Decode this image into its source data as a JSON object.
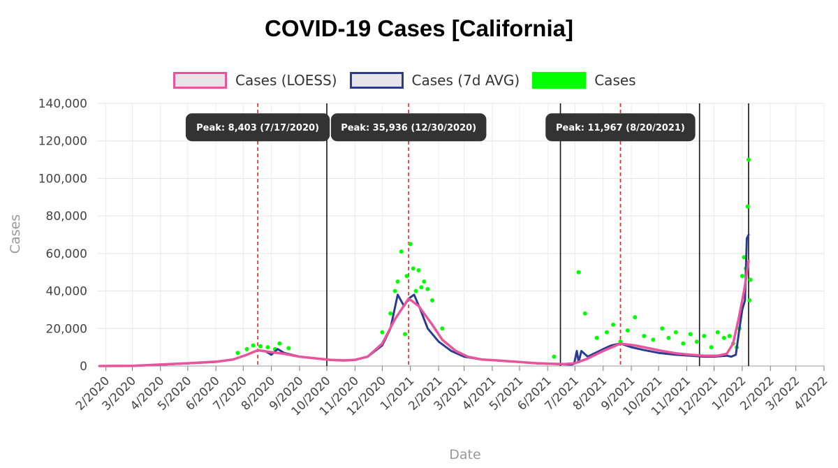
{
  "chart_data": {
    "type": "line",
    "title": "COVID-19 Cases [California]",
    "xlabel": "Date",
    "ylabel": "Cases",
    "ylim": [
      0,
      140000
    ],
    "xlim": [
      "2020-01-23",
      "2022-04-01"
    ],
    "y_ticks": [
      0,
      20000,
      40000,
      60000,
      80000,
      100000,
      120000,
      140000
    ],
    "y_tick_labels": [
      "0",
      "20,000",
      "40,000",
      "60,000",
      "80,000",
      "100,000",
      "120,000",
      "140,000"
    ],
    "x_ticks": [
      "2020-02-01",
      "2020-03-01",
      "2020-04-01",
      "2020-05-01",
      "2020-06-01",
      "2020-07-01",
      "2020-08-01",
      "2020-09-01",
      "2020-10-01",
      "2020-11-01",
      "2020-12-01",
      "2021-01-01",
      "2021-02-01",
      "2021-03-01",
      "2021-04-01",
      "2021-05-01",
      "2021-06-01",
      "2021-07-01",
      "2021-08-01",
      "2021-09-01",
      "2021-10-01",
      "2021-11-01",
      "2021-12-01",
      "2022-01-01",
      "2022-02-01",
      "2022-03-01",
      "2022-04-01"
    ],
    "x_tick_labels": [
      "2/2020",
      "3/2020",
      "4/2020",
      "5/2020",
      "6/2020",
      "7/2020",
      "8/2020",
      "9/2020",
      "10/2020",
      "11/2020",
      "12/2020",
      "1/2021",
      "2/2021",
      "3/2021",
      "4/2021",
      "5/2021",
      "6/2021",
      "7/2021",
      "8/2021",
      "9/2021",
      "10/2021",
      "11/2021",
      "12/2021",
      "1/2022",
      "2/2022",
      "3/2022",
      "4/2022"
    ],
    "grid": true,
    "legend_position": "top",
    "series": [
      {
        "name": "Cases (LOESS)",
        "color": "#e8559c",
        "x": [
          "2020-01-25",
          "2020-03-01",
          "2020-04-01",
          "2020-05-01",
          "2020-06-01",
          "2020-06-20",
          "2020-07-05",
          "2020-07-17",
          "2020-07-30",
          "2020-08-15",
          "2020-09-01",
          "2020-09-20",
          "2020-10-05",
          "2020-10-20",
          "2020-11-01",
          "2020-11-15",
          "2020-12-01",
          "2020-12-15",
          "2020-12-30",
          "2021-01-10",
          "2021-01-25",
          "2021-02-05",
          "2021-02-20",
          "2021-03-05",
          "2021-03-20",
          "2021-04-05",
          "2021-04-20",
          "2021-05-05",
          "2021-05-20",
          "2021-06-05",
          "2021-06-20",
          "2021-07-01",
          "2021-07-15",
          "2021-08-01",
          "2021-08-20",
          "2021-09-05",
          "2021-09-20",
          "2021-10-05",
          "2021-10-20",
          "2021-11-05",
          "2021-11-20",
          "2021-12-05",
          "2021-12-15",
          "2021-12-22",
          "2021-12-28",
          "2022-01-03",
          "2022-01-08"
        ],
        "y": [
          0,
          100,
          800,
          1500,
          2300,
          3500,
          6000,
          8403,
          7500,
          6500,
          5000,
          4000,
          3300,
          3000,
          3300,
          5000,
          12000,
          25000,
          35936,
          32000,
          22000,
          14000,
          8000,
          5000,
          3500,
          3000,
          2500,
          2000,
          1500,
          1200,
          1000,
          1500,
          4000,
          8000,
          11967,
          11000,
          9500,
          8000,
          6800,
          6000,
          5500,
          5500,
          6500,
          12000,
          25000,
          40000,
          56000
        ]
      },
      {
        "name": "Cases (7d AVG)",
        "color": "#2b3b8f",
        "x": [
          "2020-01-25",
          "2020-03-01",
          "2020-04-01",
          "2020-05-01",
          "2020-06-01",
          "2020-06-20",
          "2020-07-05",
          "2020-07-17",
          "2020-07-25",
          "2020-08-01",
          "2020-08-08",
          "2020-08-15",
          "2020-09-01",
          "2020-09-20",
          "2020-10-05",
          "2020-10-20",
          "2020-11-01",
          "2020-11-15",
          "2020-12-01",
          "2020-12-10",
          "2020-12-18",
          "2020-12-25",
          "2020-12-30",
          "2021-01-05",
          "2021-01-12",
          "2021-01-20",
          "2021-02-01",
          "2021-02-15",
          "2021-03-01",
          "2021-03-20",
          "2021-04-05",
          "2021-04-20",
          "2021-05-05",
          "2021-05-20",
          "2021-06-05",
          "2021-06-20",
          "2021-06-27",
          "2021-06-30",
          "2021-07-03",
          "2021-07-05",
          "2021-07-08",
          "2021-07-15",
          "2021-08-01",
          "2021-08-10",
          "2021-08-20",
          "2021-09-01",
          "2021-09-15",
          "2021-10-01",
          "2021-10-20",
          "2021-11-05",
          "2021-11-20",
          "2021-12-01",
          "2021-12-15",
          "2021-12-20",
          "2021-12-25",
          "2021-12-29",
          "2022-01-01",
          "2022-01-04",
          "2022-01-06",
          "2022-01-08"
        ],
        "y": [
          0,
          100,
          700,
          1400,
          2200,
          3500,
          6000,
          8403,
          8000,
          6000,
          9000,
          7000,
          5000,
          4000,
          3200,
          2900,
          3200,
          5000,
          11000,
          20000,
          38000,
          32000,
          35936,
          38000,
          30000,
          20000,
          13000,
          8000,
          5000,
          3500,
          3000,
          2500,
          2000,
          1400,
          1100,
          900,
          800,
          1200,
          8000,
          2000,
          8000,
          5000,
          9000,
          11000,
          11967,
          10000,
          8500,
          7000,
          6000,
          5500,
          5000,
          5000,
          5500,
          5000,
          6000,
          20000,
          30000,
          35000,
          68000,
          70000
        ]
      },
      {
        "name": "Cases",
        "color": "#00ff00",
        "x": [
          "2020-06-25",
          "2020-07-05",
          "2020-07-12",
          "2020-07-20",
          "2020-07-28",
          "2020-08-05",
          "2020-08-10",
          "2020-08-20",
          "2020-12-01",
          "2020-12-10",
          "2020-12-15",
          "2020-12-18",
          "2020-12-22",
          "2020-12-26",
          "2020-12-28",
          "2021-01-01",
          "2021-01-04",
          "2021-01-07",
          "2021-01-10",
          "2021-01-13",
          "2021-01-16",
          "2021-01-20",
          "2021-01-25",
          "2021-02-05",
          "2021-06-08",
          "2021-07-05",
          "2021-07-12",
          "2021-07-25",
          "2021-08-05",
          "2021-08-12",
          "2021-08-20",
          "2021-08-28",
          "2021-09-05",
          "2021-09-15",
          "2021-09-25",
          "2021-10-05",
          "2021-10-12",
          "2021-10-20",
          "2021-10-28",
          "2021-11-05",
          "2021-11-12",
          "2021-11-20",
          "2021-11-28",
          "2021-12-05",
          "2021-12-12",
          "2021-12-18",
          "2021-12-22",
          "2021-12-26",
          "2021-12-29",
          "2022-01-01",
          "2022-01-03",
          "2022-01-05",
          "2022-01-07",
          "2022-01-08",
          "2022-01-09",
          "2022-01-10"
        ],
        "y": [
          7000,
          9000,
          11000,
          10500,
          10000,
          9000,
          12000,
          9500,
          18000,
          28000,
          40000,
          45000,
          61000,
          17000,
          48000,
          65000,
          52000,
          40000,
          51000,
          42000,
          45000,
          41000,
          35000,
          20000,
          5000,
          50000,
          28000,
          15000,
          18000,
          22000,
          13000,
          19000,
          26000,
          16000,
          14000,
          20000,
          15000,
          18000,
          12000,
          17000,
          13000,
          16000,
          10000,
          18000,
          15000,
          16000,
          12000,
          10000,
          20000,
          48000,
          58000,
          52000,
          85000,
          110000,
          35000,
          46000
        ]
      }
    ],
    "reference_lines": [
      {
        "x": "2020-07-17",
        "style": "dashed",
        "color": "#ee2222"
      },
      {
        "x": "2020-10-01",
        "style": "solid",
        "color": "#111111"
      },
      {
        "x": "2020-12-30",
        "style": "dashed",
        "color": "#ee2222"
      },
      {
        "x": "2021-06-15",
        "style": "solid",
        "color": "#111111"
      },
      {
        "x": "2021-08-20",
        "style": "dashed",
        "color": "#ee2222"
      },
      {
        "x": "2021-11-15",
        "style": "solid",
        "color": "#111111"
      },
      {
        "x": "2022-01-08",
        "style": "solid",
        "color": "#111111"
      }
    ],
    "annotations": [
      {
        "text": "Peak: 8,403 (7/17/2020)",
        "x": "2020-07-17",
        "y": 128000
      },
      {
        "text": "Peak: 35,936 (12/30/2020)",
        "x": "2020-12-30",
        "y": 128000
      },
      {
        "text": "Peak: 11,967 (8/20/2021)",
        "x": "2021-08-20",
        "y": 128000
      }
    ]
  }
}
